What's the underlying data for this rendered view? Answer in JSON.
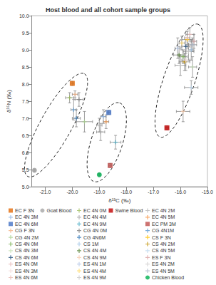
{
  "chart_data": {
    "type": "scatter",
    "title": "Host blood and all cohort sample groups",
    "x_label": "δ¹³C (‰)",
    "y_label": "δ¹⁵N (‰)",
    "xlim": [
      -21.5,
      -15.0
    ],
    "xticks": [
      {
        "value": -21,
        "label": "-21.0"
      },
      {
        "value": -20,
        "label": "-20.0"
      },
      {
        "value": -19,
        "label": "-19.0"
      },
      {
        "value": -18,
        "label": "-18.0"
      },
      {
        "value": -17,
        "label": "-17.0"
      },
      {
        "value": -16,
        "label": "-16.0"
      },
      {
        "value": -15,
        "label": "-15.0"
      }
    ],
    "ylim": [
      5.0,
      10.0
    ],
    "yticks": [
      {
        "value": 5,
        "label": "5.0"
      },
      {
        "value": 5.5,
        "label": "5.5"
      },
      {
        "value": 6,
        "label": "6.0"
      },
      {
        "value": 6.5,
        "label": "6.5"
      },
      {
        "value": 7,
        "label": "7.0"
      },
      {
        "value": 7.5,
        "label": "7.5"
      },
      {
        "value": 8,
        "label": "8.0"
      },
      {
        "value": 8.5,
        "label": "8.5"
      },
      {
        "value": 9,
        "label": "9.0"
      },
      {
        "value": 9.5,
        "label": "9.5"
      },
      {
        "value": 10,
        "label": "10.0"
      }
    ],
    "grid": false,
    "legend": "bottom",
    "clusters": [
      {
        "from": [
          -21.65,
          5.3
        ],
        "to": [
          -19.55,
          8.3
        ]
      },
      {
        "from": [
          -19.2,
          5.15
        ],
        "to": [
          -18.25,
          7.45
        ]
      },
      {
        "from": [
          -16.75,
          6.45
        ],
        "to": [
          -15.35,
          9.75
        ]
      }
    ],
    "series": [
      {
        "name": "EC F 3N",
        "color": "#E46C0A",
        "marker": "square",
        "x": [
          -20.0
        ],
        "y": [
          8.02
        ],
        "xerr": [
          0.06
        ],
        "yerr": [
          0.06
        ]
      },
      {
        "name": "EC 4N 0M",
        "color": "#9BBB59",
        "marker": "cross",
        "x": [
          -20.1
        ],
        "y": [
          7.6
        ],
        "xerr": [
          0.15
        ],
        "yerr": [
          0.15
        ]
      },
      {
        "name": "EC 4N 2M",
        "color": "#B7B7B7",
        "marker": "cross",
        "x": [
          -19.0
        ],
        "y": [
          6.8
        ],
        "xerr": [
          0.1
        ],
        "yerr": [
          0.2
        ]
      },
      {
        "name": "EC 4N 3M",
        "color": "#8DB4E2",
        "marker": "cross",
        "x": [
          -18.85
        ],
        "y": [
          7.05
        ],
        "xerr": [
          0.1
        ],
        "yerr": [
          0.2
        ]
      },
      {
        "name": "EC 4N 4M",
        "color": "#A6A6A6",
        "marker": "cross",
        "x": [
          -18.95
        ],
        "y": [
          6.6
        ],
        "xerr": [
          0.15
        ],
        "yerr": [
          0.25
        ]
      },
      {
        "name": "EC 4N 5M",
        "color": "#F79646",
        "marker": "cross",
        "x": [
          -18.75
        ],
        "y": [
          6.9
        ],
        "xerr": [
          0.1
        ],
        "yerr": [
          0.2
        ]
      },
      {
        "name": "EC 4N 6M",
        "color": "#4472C4",
        "marker": "square",
        "x": [
          -18.65
        ],
        "y": [
          7.17
        ],
        "xerr": [
          0.05
        ],
        "yerr": [
          0.06
        ]
      },
      {
        "name": "EC 4N 9M",
        "color": "#4BACC6",
        "marker": "cross",
        "x": [
          -18.4
        ],
        "y": [
          6.3
        ],
        "xerr": [
          0.2
        ],
        "yerr": [
          0.2
        ]
      },
      {
        "name": "EC PM 3M",
        "color": "#C0504D",
        "marker": "square",
        "x": [
          -18.6
        ],
        "y": [
          5.62
        ],
        "xerr": [
          0.05
        ],
        "yerr": [
          0.06
        ]
      },
      {
        "name": "CG F 3N",
        "color": "#F4B183",
        "marker": "cross",
        "x": [
          -19.9
        ],
        "y": [
          7.7
        ],
        "xerr": [
          0.1
        ],
        "yerr": [
          0.1
        ]
      },
      {
        "name": "CG 4N 0M",
        "color": "#7F7F7F",
        "marker": "cross",
        "x": [
          -19.75
        ],
        "y": [
          7.55
        ],
        "xerr": [
          0.15
        ],
        "yerr": [
          0.2
        ]
      },
      {
        "name": "CG 4N1M",
        "color": "#5B9BD5",
        "marker": "cross",
        "x": [
          -19.95
        ],
        "y": [
          7.25
        ],
        "xerr": [
          0.1
        ],
        "yerr": [
          0.3
        ]
      },
      {
        "name": "CG 4N 2M",
        "color": "#A9D18E",
        "marker": "cross",
        "x": [
          -19.55
        ],
        "y": [
          6.9
        ],
        "xerr": [
          0.3
        ],
        "yerr": [
          0.3
        ]
      },
      {
        "name": "CG 4N6M",
        "color": "#2E75B6",
        "marker": "cross",
        "x": [
          -19.85
        ],
        "y": [
          7.0
        ],
        "xerr": [
          0.15
        ],
        "yerr": [
          0.25
        ]
      },
      {
        "name": "CS F 3N",
        "color": "#FFC000",
        "marker": "cross",
        "x": [
          -15.75
        ],
        "y": [
          9.3
        ],
        "xerr": [
          0.2
        ],
        "yerr": [
          0.25
        ]
      },
      {
        "name": "CS 4N 0M",
        "color": "#70AD47",
        "marker": "cross",
        "x": [
          -15.9
        ],
        "y": [
          8.8
        ],
        "xerr": [
          0.15
        ],
        "yerr": [
          0.2
        ]
      },
      {
        "name": "CS 1M",
        "color": "#9DC3E6",
        "marker": "cross",
        "x": [
          -15.6
        ],
        "y": [
          9.0
        ],
        "xerr": [
          0.1
        ],
        "yerr": [
          0.3
        ]
      },
      {
        "name": "CS 4N 2M",
        "color": "#BF9000",
        "marker": "cross",
        "x": [
          -15.85
        ],
        "y": [
          8.65
        ],
        "xerr": [
          0.2
        ],
        "yerr": [
          0.25
        ]
      },
      {
        "name": "CS 4N 3M",
        "color": "#C5E0B4",
        "marker": "cross",
        "x": [
          -15.55
        ],
        "y": [
          8.5
        ],
        "xerr": [
          0.15
        ],
        "yerr": [
          0.3
        ]
      },
      {
        "name": "CS 4N 4M",
        "color": "#548235",
        "marker": "cross",
        "x": [
          -16.05
        ],
        "y": [
          8.85
        ],
        "xerr": [
          0.2
        ],
        "yerr": [
          0.25
        ]
      },
      {
        "name": "CS 4N 5M",
        "color": "#BDD7EE",
        "marker": "cross",
        "x": [
          -15.6
        ],
        "y": [
          7.9
        ],
        "xerr": [
          0.25
        ],
        "yerr": [
          0.2
        ]
      },
      {
        "name": "CS 4N 6M",
        "color": "#1F4E79",
        "marker": "cross",
        "x": [
          -15.8
        ],
        "y": [
          9.1
        ],
        "xerr": [
          0.15
        ],
        "yerr": [
          0.2
        ]
      },
      {
        "name": "CS 4N 9M",
        "color": "#F8CBAD",
        "marker": "cross",
        "x": [
          -15.9
        ],
        "y": [
          7.2
        ],
        "xerr": [
          0.25
        ],
        "yerr": [
          0.3
        ]
      },
      {
        "name": "ES F 3N",
        "color": "#D9A3A3",
        "marker": "cross",
        "x": [
          -15.5
        ],
        "y": [
          9.25
        ],
        "xerr": [
          0.1
        ],
        "yerr": [
          0.2
        ]
      },
      {
        "name": "ES 4N 0M",
        "color": "#E6B9B8",
        "marker": "cross",
        "x": [
          -15.65
        ],
        "y": [
          9.45
        ],
        "xerr": [
          0.15
        ],
        "yerr": [
          0.2
        ]
      },
      {
        "name": "ES 4N 1M",
        "color": "#B4C7E7",
        "marker": "cross",
        "x": [
          -16.1
        ],
        "y": [
          9.05
        ],
        "xerr": [
          0.1
        ],
        "yerr": [
          0.3
        ]
      },
      {
        "name": "ES 4N 2M",
        "color": "#D0CECE",
        "marker": "cross",
        "x": [
          -15.7
        ],
        "y": [
          8.95
        ],
        "xerr": [
          0.2
        ],
        "yerr": [
          0.25
        ]
      },
      {
        "name": "ES 4N 3M",
        "color": "#F2DCDB",
        "marker": "cross",
        "x": [
          -15.8
        ],
        "y": [
          8.7
        ],
        "xerr": [
          0.15
        ],
        "yerr": [
          0.3
        ]
      },
      {
        "name": "ES 4N 4M",
        "color": "#FFD966",
        "marker": "cross",
        "x": [
          -15.95
        ],
        "y": [
          9.2
        ],
        "xerr": [
          0.1
        ],
        "yerr": [
          0.2
        ]
      },
      {
        "name": "ES 4N 5M",
        "color": "#ADB9CA",
        "marker": "cross",
        "x": [
          -15.55
        ],
        "y": [
          9.15
        ],
        "xerr": [
          0.15
        ],
        "yerr": [
          0.2
        ]
      },
      {
        "name": "ES 4N 6M",
        "color": "#E6B8AF",
        "marker": "cross",
        "x": [
          -15.75
        ],
        "y": [
          9.35
        ],
        "xerr": [
          0.1
        ],
        "yerr": [
          0.2
        ]
      },
      {
        "name": "ES 4N 9M",
        "color": "#C9C9C9",
        "marker": "cross",
        "x": [
          -16.0
        ],
        "y": [
          8.55
        ],
        "xerr": [
          0.2
        ],
        "yerr": [
          0.3
        ]
      },
      {
        "name": "Chicken Blood",
        "color": "#00B050",
        "marker": "circle",
        "x": [
          -19.0
        ],
        "y": [
          5.35
        ],
        "xerr": [
          0.04
        ],
        "yerr": [
          0.04
        ]
      },
      {
        "name": "Goat Blood",
        "color": "#A5A5A5",
        "marker": "circle",
        "x": [
          -21.4
        ],
        "y": [
          5.48
        ],
        "xerr": [
          0.04
        ],
        "yerr": [
          0.04
        ]
      },
      {
        "name": "Swine Blood",
        "color": "#C00000",
        "marker": "square",
        "x": [
          -16.5
        ],
        "y": [
          6.72
        ],
        "xerr": [
          0.06
        ],
        "yerr": [
          0.06
        ]
      }
    ]
  }
}
